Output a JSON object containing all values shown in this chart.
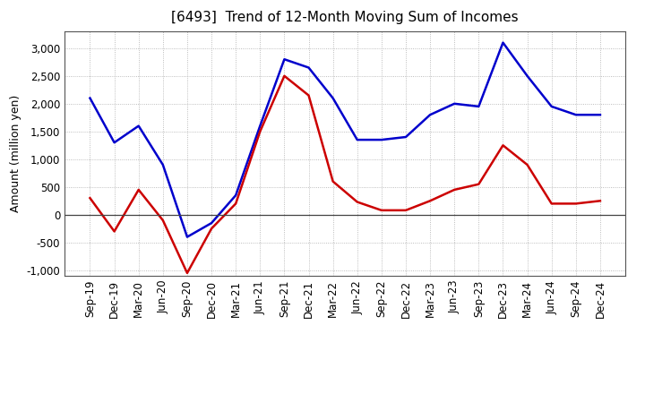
{
  "title": "[6493]  Trend of 12-Month Moving Sum of Incomes",
  "ylabel": "Amount (million yen)",
  "x_labels": [
    "Sep-19",
    "Dec-19",
    "Mar-20",
    "Jun-20",
    "Sep-20",
    "Dec-20",
    "Mar-21",
    "Jun-21",
    "Sep-21",
    "Dec-21",
    "Mar-22",
    "Jun-22",
    "Sep-22",
    "Dec-22",
    "Mar-23",
    "Jun-23",
    "Sep-23",
    "Dec-23",
    "Mar-24",
    "Jun-24",
    "Sep-24",
    "Dec-24"
  ],
  "ordinary_income": [
    2100,
    1300,
    1600,
    900,
    -400,
    -150,
    350,
    1600,
    2800,
    2650,
    2100,
    1350,
    1350,
    1400,
    1800,
    2000,
    1950,
    3100,
    2500,
    1950,
    1800,
    1800
  ],
  "net_income": [
    300,
    -300,
    450,
    -100,
    -1050,
    -250,
    200,
    1500,
    2500,
    2150,
    600,
    230,
    80,
    80,
    250,
    450,
    550,
    1250,
    900,
    200,
    200,
    250
  ],
  "ordinary_color": "#0000cc",
  "net_color": "#cc0000",
  "ylim": [
    -1100,
    3300
  ],
  "yticks": [
    -1000,
    -500,
    0,
    500,
    1000,
    1500,
    2000,
    2500,
    3000
  ],
  "background_color": "#ffffff",
  "grid_color": "#aaaaaa",
  "title_fontsize": 11,
  "axis_label_fontsize": 9,
  "tick_fontsize": 8.5,
  "legend_fontsize": 9,
  "line_width": 1.8
}
